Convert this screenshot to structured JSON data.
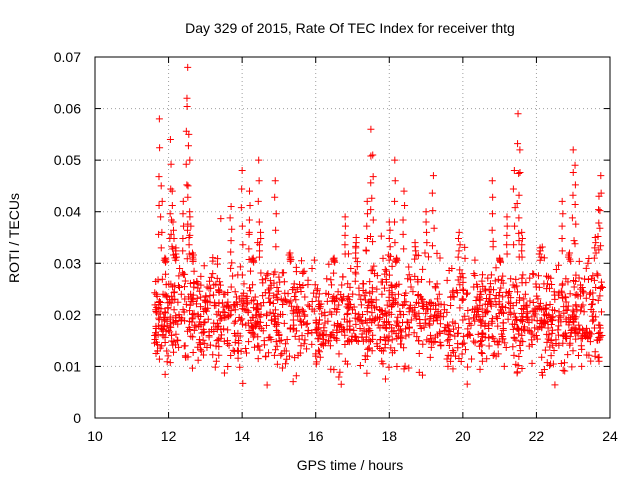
{
  "chart_data": {
    "type": "scatter",
    "title": "Day 329 of 2015, Rate Of TEC Index for receiver thtg",
    "xlabel": "GPS time / hours",
    "ylabel": "ROTI / TECUs",
    "xlim": [
      10,
      24
    ],
    "ylim": [
      0,
      0.07
    ],
    "xticks": [
      "10",
      "12",
      "14",
      "16",
      "18",
      "20",
      "22",
      "24"
    ],
    "yticks": [
      "0",
      "0.01",
      "0.02",
      "0.03",
      "0.04",
      "0.05",
      "0.06",
      "0.07"
    ],
    "grid": true,
    "marker": "+",
    "color": "#ff0000",
    "series": [
      {
        "name": "ROTI",
        "x": [
          11.62,
          11.65,
          11.7,
          11.75,
          11.8,
          11.82,
          11.85,
          11.9,
          11.95,
          12.0,
          12.05,
          12.1,
          12.12,
          12.15,
          12.2,
          12.25,
          12.3,
          12.35,
          12.4,
          12.45,
          12.5,
          12.52,
          12.55,
          12.58,
          12.6,
          12.65,
          12.7,
          12.8,
          12.9,
          13.0,
          13.1,
          13.2,
          13.3,
          13.4,
          13.5,
          13.6,
          13.7,
          13.8,
          13.9,
          14.0,
          14.05,
          14.1,
          14.2,
          14.3,
          14.4,
          14.45,
          14.5,
          14.6,
          14.7,
          14.8,
          14.9,
          14.95,
          15.0,
          15.1,
          15.2,
          15.3,
          15.4,
          15.5,
          15.6,
          15.7,
          15.8,
          15.9,
          16.0,
          16.1,
          16.2,
          16.3,
          16.4,
          16.5,
          16.6,
          16.7,
          16.8,
          16.9,
          17.0,
          17.1,
          17.2,
          17.3,
          17.4,
          17.5,
          17.55,
          17.6,
          17.7,
          17.8,
          17.9,
          18.0,
          18.1,
          18.15,
          18.2,
          18.3,
          18.4,
          18.5,
          18.6,
          18.7,
          18.8,
          18.9,
          19.0,
          19.1,
          19.2,
          19.3,
          19.4,
          19.5,
          19.6,
          19.7,
          19.8,
          19.9,
          20.0,
          20.1,
          20.2,
          20.3,
          20.4,
          20.5,
          20.6,
          20.7,
          20.8,
          20.9,
          21.0,
          21.1,
          21.2,
          21.3,
          21.4,
          21.5,
          21.55,
          21.6,
          21.7,
          21.8,
          21.9,
          22.0,
          22.1,
          22.2,
          22.3,
          22.4,
          22.5,
          22.6,
          22.7,
          22.8,
          22.9,
          23.0,
          23.05,
          23.1,
          23.15,
          23.2,
          23.3,
          23.4,
          23.5,
          23.6,
          23.7,
          23.75
        ],
        "y": [
          0.016,
          0.021,
          0.013,
          0.058,
          0.045,
          0.018,
          0.024,
          0.031,
          0.013,
          0.017,
          0.054,
          0.044,
          0.038,
          0.021,
          0.033,
          0.015,
          0.029,
          0.019,
          0.042,
          0.014,
          0.062,
          0.068,
          0.055,
          0.039,
          0.024,
          0.032,
          0.017,
          0.026,
          0.013,
          0.021,
          0.016,
          0.028,
          0.011,
          0.019,
          0.024,
          0.015,
          0.041,
          0.022,
          0.013,
          0.048,
          0.026,
          0.018,
          0.044,
          0.031,
          0.021,
          0.05,
          0.036,
          0.015,
          0.028,
          0.019,
          0.046,
          0.024,
          0.016,
          0.022,
          0.013,
          0.032,
          0.018,
          0.025,
          0.014,
          0.02,
          0.017,
          0.029,
          0.012,
          0.022,
          0.016,
          0.027,
          0.014,
          0.031,
          0.018,
          0.023,
          0.039,
          0.015,
          0.021,
          0.035,
          0.019,
          0.026,
          0.042,
          0.056,
          0.051,
          0.028,
          0.018,
          0.024,
          0.015,
          0.038,
          0.022,
          0.05,
          0.031,
          0.017,
          0.044,
          0.027,
          0.019,
          0.034,
          0.015,
          0.023,
          0.04,
          0.018,
          0.047,
          0.026,
          0.014,
          0.021,
          0.017,
          0.029,
          0.012,
          0.036,
          0.019,
          0.024,
          0.016,
          0.028,
          0.021,
          0.015,
          0.025,
          0.018,
          0.046,
          0.022,
          0.031,
          0.017,
          0.039,
          0.027,
          0.048,
          0.059,
          0.052,
          0.036,
          0.024,
          0.019,
          0.028,
          0.016,
          0.033,
          0.021,
          0.026,
          0.015,
          0.023,
          0.019,
          0.042,
          0.027,
          0.032,
          0.052,
          0.049,
          0.021,
          0.018,
          0.025,
          0.016,
          0.03,
          0.022,
          0.035,
          0.043,
          0.047
        ],
        "band": {
          "description": "dense cloud of points spanning the observed interval",
          "start_hour": 11.6,
          "end_hour": 23.8,
          "baseline_min": 0.005,
          "baseline_center": 0.016,
          "baseline_max": 0.03
        }
      }
    ]
  }
}
